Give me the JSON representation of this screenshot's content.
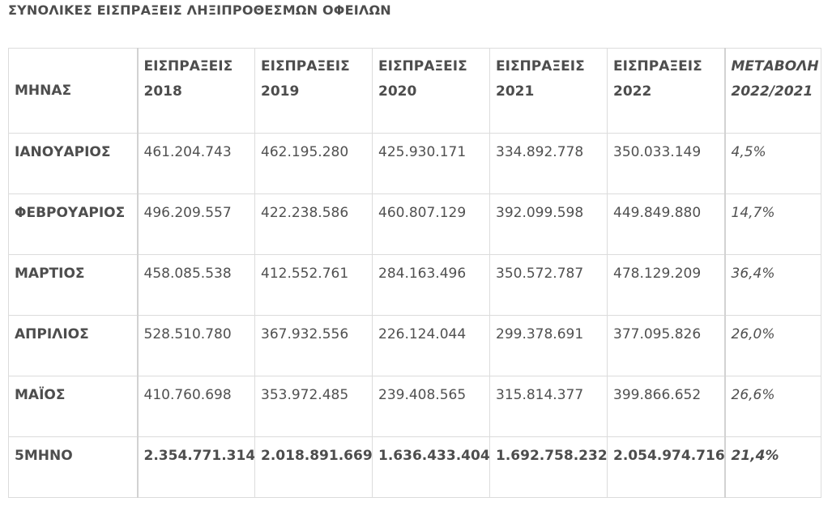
{
  "title": "ΣΥΝΟΛΙΚΕΣ ΕΙΣΠΡΑΞΕΙΣ ΛΗΞΙΠΡΟΘΕΣΜΩΝ ΟΦΕΙΛΩΝ",
  "headers": {
    "month": "ΜΗΝΑΣ",
    "years": [
      {
        "line1": "ΕΙΣΠΡΑΞΕΙΣ",
        "line2": "2018"
      },
      {
        "line1": "ΕΙΣΠΡΑΞΕΙΣ",
        "line2": "2019"
      },
      {
        "line1": "ΕΙΣΠΡΑΞΕΙΣ",
        "line2": "2020"
      },
      {
        "line1": "ΕΙΣΠΡΑΞΕΙΣ",
        "line2": "2021"
      },
      {
        "line1": "ΕΙΣΠΡΑΞΕΙΣ",
        "line2": "2022"
      }
    ],
    "change": {
      "line1": "ΜΕΤΑΒΟΛΗ",
      "line2": "2022/2021"
    }
  },
  "rows": [
    {
      "month": "ΙΑΝΟΥΑΡΙΟΣ",
      "values": [
        "461.204.743",
        "462.195.280",
        "425.930.171",
        "334.892.778",
        "350.033.149"
      ],
      "change": "4,5%"
    },
    {
      "month": "ΦΕΒΡΟΥΑΡΙΟΣ",
      "values": [
        "496.209.557",
        "422.238.586",
        "460.807.129",
        "392.099.598",
        "449.849.880"
      ],
      "change": "14,7%"
    },
    {
      "month": "ΜΑΡΤΙΟΣ",
      "values": [
        "458.085.538",
        "412.552.761",
        "284.163.496",
        "350.572.787",
        "478.129.209"
      ],
      "change": "36,4%"
    },
    {
      "month": "ΑΠΡΙΛΙΟΣ",
      "values": [
        "528.510.780",
        "367.932.556",
        "226.124.044",
        "299.378.691",
        "377.095.826"
      ],
      "change": "26,0%"
    },
    {
      "month": "ΜΑΪΟΣ",
      "values": [
        "410.760.698",
        "353.972.485",
        "239.408.565",
        "315.814.377",
        "399.866.652"
      ],
      "change": "26,6%"
    }
  ],
  "total": {
    "month": "5ΜΗΝΟ",
    "values": [
      "2.354.771.314",
      "2.018.891.669",
      "1.636.433.404",
      "1.692.758.232",
      "2.054.974.716"
    ],
    "change": "21,4%"
  }
}
